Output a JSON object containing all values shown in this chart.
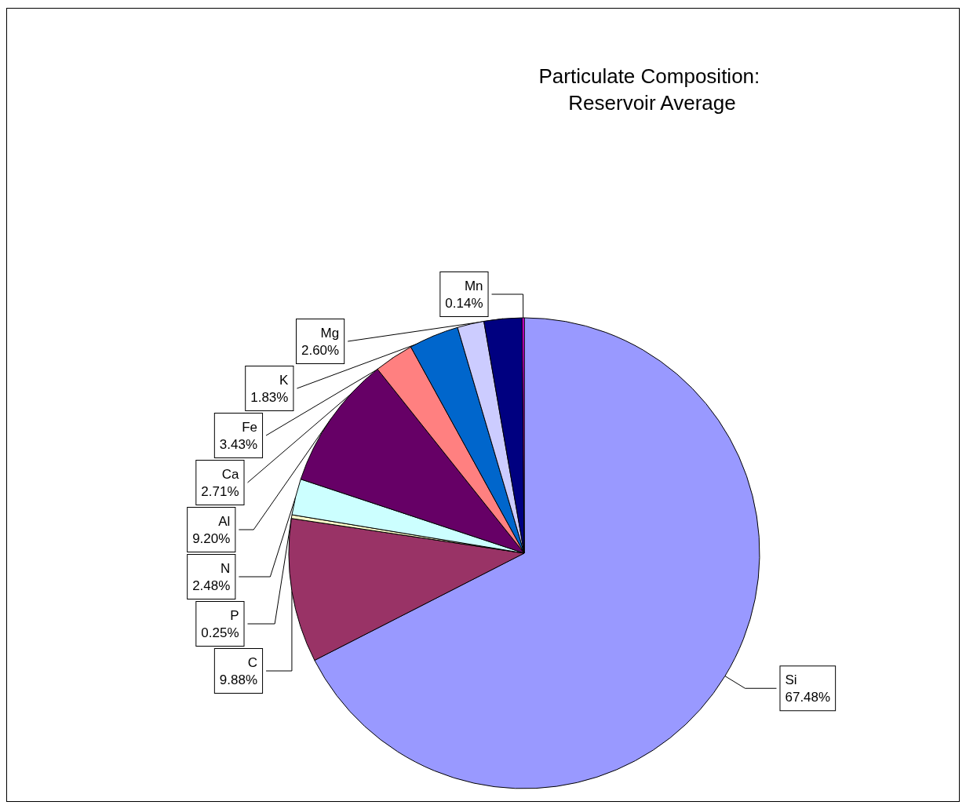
{
  "chart_data": {
    "type": "pie",
    "title": "Particulate Composition: Reservoir Average",
    "categories": [
      "Si",
      "C",
      "P",
      "N",
      "Al",
      "Ca",
      "Fe",
      "K",
      "Mg",
      "Mn"
    ],
    "values": [
      67.48,
      9.88,
      0.25,
      2.48,
      9.2,
      2.71,
      3.43,
      1.83,
      2.6,
      0.14
    ],
    "colors": [
      "#9999ff",
      "#993366",
      "#ffffcc",
      "#ccffff",
      "#660066",
      "#ff8080",
      "#0066cc",
      "#ccccff",
      "#000080",
      "#ff00ff"
    ],
    "value_labels": [
      "67.48%",
      "9.88%",
      "0.25%",
      "2.48%",
      "9.20%",
      "2.71%",
      "3.43%",
      "1.83%",
      "2.60%",
      "0.14%"
    ],
    "legend": false
  }
}
